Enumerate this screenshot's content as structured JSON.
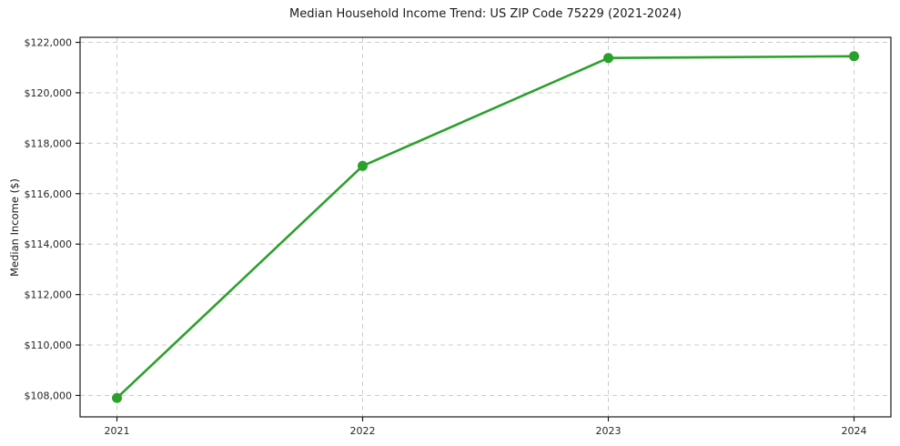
{
  "chart_data": {
    "type": "line",
    "title": "Median Household Income Trend: US ZIP Code 75229 (2021-2024)",
    "xlabel": "",
    "ylabel": "Median Income ($)",
    "categories": [
      2021,
      2022,
      2023,
      2024
    ],
    "series": [
      {
        "name": "Median Household Income",
        "values": [
          107900,
          117100,
          121380,
          121450
        ]
      }
    ],
    "x_tick_labels": [
      "2021",
      "2022",
      "2023",
      "2024"
    ],
    "y_ticks": [
      108000,
      110000,
      112000,
      114000,
      116000,
      118000,
      120000,
      122000
    ],
    "y_tick_labels": [
      "$108,000",
      "$110,000",
      "$112,000",
      "$114,000",
      "$116,000",
      "$118,000",
      "$120,000",
      "$122,000"
    ],
    "xlim": [
      2020.85,
      2024.15
    ],
    "ylim": [
      107150,
      122200
    ],
    "grid": true,
    "grid_style": "dashed",
    "legend_position": "none",
    "colors": {
      "line": "#2ca02c",
      "marker": "#2ca02c",
      "grid": "#cccccc",
      "spine": "#1a1a1a",
      "tick_text": "#262626",
      "background": "#ffffff"
    },
    "marker": "circle",
    "marker_radius": 5.5,
    "line_width": 2.6
  }
}
